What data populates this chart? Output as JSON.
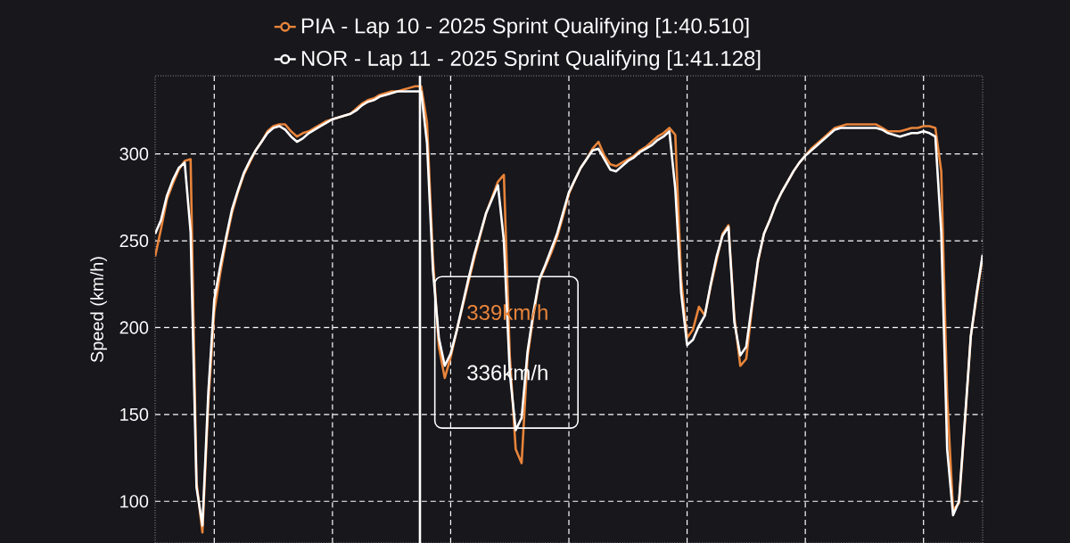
{
  "chart_data": {
    "type": "line",
    "ylabel": "Speed (km/h)",
    "legend": "top",
    "grid": true,
    "categories": [
      null,
      null,
      null,
      null,
      null,
      null,
      null,
      null,
      null,
      null,
      null,
      null,
      null,
      null,
      null,
      null,
      null,
      null,
      null,
      null,
      null,
      null,
      null,
      null,
      null,
      null,
      null,
      null,
      null,
      null,
      null,
      null,
      null,
      null,
      null,
      null,
      null,
      null,
      null,
      null,
      null,
      null,
      null,
      null,
      null,
      null,
      null,
      null,
      null,
      null,
      null,
      null,
      null,
      null,
      null,
      null,
      null,
      null,
      null,
      null,
      null,
      null,
      null,
      null,
      null,
      null,
      null,
      null,
      null,
      null,
      null,
      null,
      null,
      null,
      null,
      null,
      null,
      null,
      null,
      null,
      null,
      null,
      null,
      null,
      null,
      null,
      null,
      null,
      null,
      null,
      null,
      null,
      null,
      null,
      null,
      null,
      null,
      null,
      null,
      null,
      null,
      null,
      null,
      null,
      null,
      null,
      null,
      null,
      null,
      null,
      null,
      null,
      null,
      null,
      null,
      null,
      null,
      null,
      null,
      null,
      null,
      null,
      null,
      null,
      null,
      null,
      null,
      null,
      null,
      null,
      null,
      null,
      null,
      null,
      null,
      null,
      null,
      null,
      null,
      null,
      null
    ],
    "ylim": [
      76,
      345
    ],
    "yticks": [
      100,
      150,
      200,
      250,
      300
    ],
    "annotations": [
      "339km/h",
      "336km/h"
    ],
    "series": [
      {
        "name": "PIA - Lap 10 - 2025 Sprint Qualifying [1:40.510]",
        "color": "#e8843a",
        "values": [
          241,
          257,
          274,
          283,
          291,
          296,
          297,
          111,
          82,
          157,
          209,
          231,
          250,
          266,
          278,
          288,
          295,
          302,
          307,
          313,
          316,
          317,
          317,
          313,
          310,
          312,
          313,
          315,
          317,
          319,
          320,
          321,
          322,
          323,
          326,
          329,
          331,
          332,
          334,
          335,
          336,
          336,
          337,
          338,
          339,
          339,
          318,
          240,
          189,
          171,
          183,
          198,
          212,
          226,
          240,
          253,
          266,
          275,
          284,
          288,
          184,
          130,
          122,
          183,
          207,
          227,
          235,
          243,
          252,
          264,
          277,
          285,
          292,
          297,
          303,
          307,
          299,
          294,
          293,
          295,
          297,
          299,
          302,
          304,
          307,
          310,
          312,
          315,
          311,
          228,
          194,
          199,
          212,
          207,
          224,
          239,
          254,
          259,
          206,
          178,
          182,
          212,
          238,
          254,
          262,
          271,
          278,
          284,
          290,
          295,
          299,
          303,
          306,
          309,
          312,
          315,
          316,
          317,
          317,
          317,
          317,
          317,
          317,
          315,
          313,
          313,
          313,
          314,
          315,
          315,
          316,
          316,
          315,
          290,
          160,
          95,
          99,
          145,
          195,
          218,
          241
        ]
      },
      {
        "name": "NOR - Lap 11 - 2025 Sprint Qualifying [1:41.128]",
        "color": "#ffffff",
        "values": [
          254,
          262,
          276,
          285,
          292,
          295,
          255,
          108,
          86,
          163,
          216,
          235,
          252,
          268,
          279,
          289,
          296,
          302,
          307,
          312,
          315,
          316,
          314,
          310,
          307,
          309,
          312,
          314,
          316,
          318,
          320,
          321,
          322,
          323,
          325,
          328,
          330,
          331,
          333,
          334,
          335,
          336,
          336,
          336,
          336,
          336,
          306,
          233,
          194,
          178,
          185,
          198,
          213,
          228,
          242,
          254,
          266,
          274,
          282,
          250,
          174,
          141,
          148,
          186,
          209,
          228,
          236,
          245,
          254,
          266,
          278,
          285,
          292,
          297,
          302,
          303,
          297,
          291,
          290,
          293,
          296,
          298,
          301,
          303,
          305,
          308,
          310,
          313,
          280,
          220,
          190,
          193,
          201,
          207,
          225,
          241,
          253,
          258,
          203,
          184,
          189,
          214,
          239,
          254,
          262,
          271,
          278,
          284,
          290,
          295,
          299,
          302,
          305,
          308,
          311,
          314,
          315,
          315,
          315,
          315,
          315,
          315,
          315,
          314,
          312,
          311,
          310,
          311,
          312,
          312,
          313,
          312,
          310,
          255,
          130,
          92,
          100,
          147,
          195,
          220,
          242
        ]
      }
    ]
  }
}
